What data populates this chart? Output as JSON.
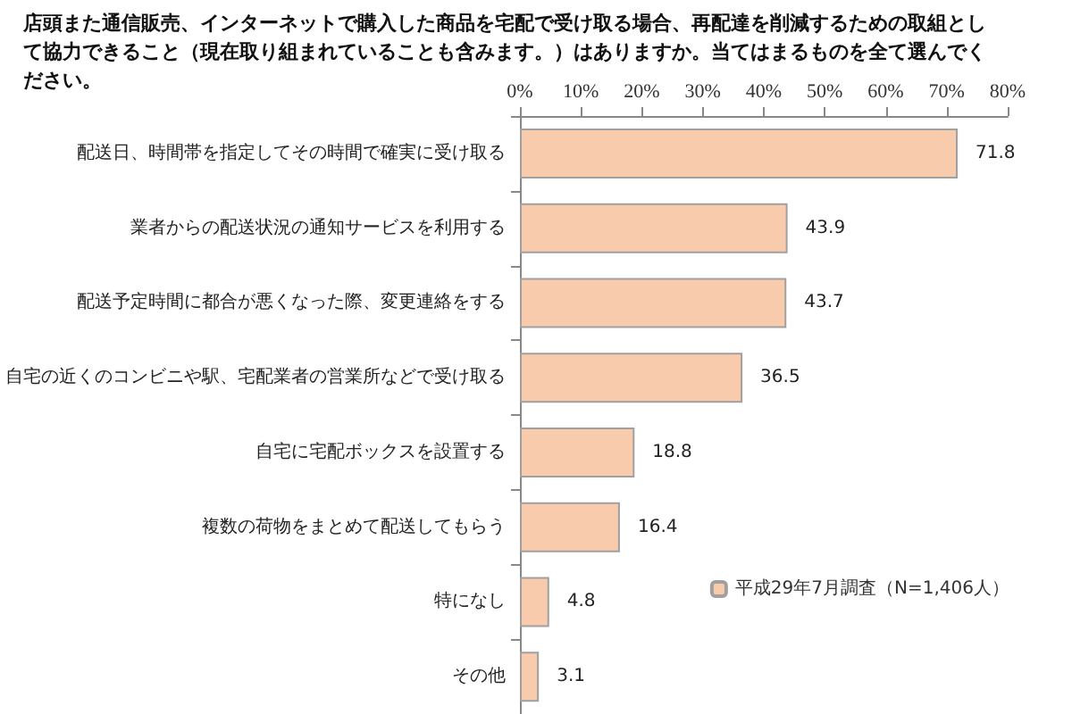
{
  "chart_data": {
    "type": "bar",
    "orientation": "horizontal",
    "title": "店頭また通信販売、インターネットで購入した商品を宅配で受け取る場合、再配達を削減するための取組として協力できること（現在取り組まれていることも含みます。）はありますか。当てはまるものを全て選んでください。",
    "categories": [
      "配送日、時間帯を指定してその時間で確実に受け取る",
      "業者からの配送状況の通知サービスを利用する",
      "配送予定時間に都合が悪くなった際、変更連絡をする",
      "自宅の近くのコンビニや駅、宅配業者の営業所などで受け取る",
      "自宅に宅配ボックスを設置する",
      "複数の荷物をまとめて配送してもらう",
      "特になし",
      "その他"
    ],
    "series": [
      {
        "name": "平成29年7月調査（N=1,406人）",
        "color": "#f8cbad",
        "values": [
          71.8,
          43.9,
          43.7,
          36.5,
          18.8,
          16.4,
          4.8,
          3.1
        ]
      }
    ],
    "xlim": [
      0,
      80
    ],
    "xticks": [
      {
        "value": 0,
        "label": "0%"
      },
      {
        "value": 10,
        "label": "10%"
      },
      {
        "value": 20,
        "label": "20%"
      },
      {
        "value": 30,
        "label": "30%"
      },
      {
        "value": 40,
        "label": "40%"
      },
      {
        "value": 50,
        "label": "50%"
      },
      {
        "value": 60,
        "label": "60%"
      },
      {
        "value": 70,
        "label": "70%"
      },
      {
        "value": 80,
        "label": "80%"
      }
    ],
    "data_labels": true,
    "legend": "bottom right",
    "grid": false
  }
}
